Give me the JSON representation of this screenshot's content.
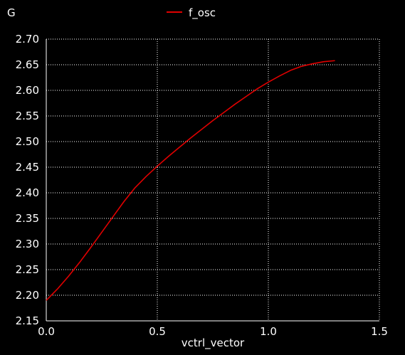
{
  "chart_data": {
    "type": "line",
    "xlabel": "vctrl_vector",
    "ylabel": "G",
    "xlim": [
      0.0,
      1.5
    ],
    "ylim": [
      2.15,
      2.7
    ],
    "xticks": [
      "0.0",
      "0.5",
      "1.0",
      "1.5"
    ],
    "yticks": [
      "2.15",
      "2.20",
      "2.25",
      "2.30",
      "2.35",
      "2.40",
      "2.45",
      "2.50",
      "2.55",
      "2.60",
      "2.65",
      "2.70"
    ],
    "grid": true,
    "legend_position": "top-center",
    "series": [
      {
        "name": "f_osc",
        "color": "#e00000",
        "x": [
          0.0,
          0.05,
          0.1,
          0.15,
          0.2,
          0.25,
          0.3,
          0.35,
          0.4,
          0.45,
          0.5,
          0.55,
          0.6,
          0.65,
          0.7,
          0.75,
          0.8,
          0.85,
          0.9,
          0.95,
          1.0,
          1.05,
          1.1,
          1.15,
          1.2,
          1.25,
          1.3
        ],
        "y": [
          2.19,
          2.212,
          2.237,
          2.264,
          2.293,
          2.323,
          2.353,
          2.383,
          2.41,
          2.432,
          2.452,
          2.471,
          2.489,
          2.507,
          2.524,
          2.541,
          2.557,
          2.573,
          2.588,
          2.603,
          2.616,
          2.628,
          2.639,
          2.647,
          2.652,
          2.656,
          2.658
        ]
      }
    ]
  }
}
